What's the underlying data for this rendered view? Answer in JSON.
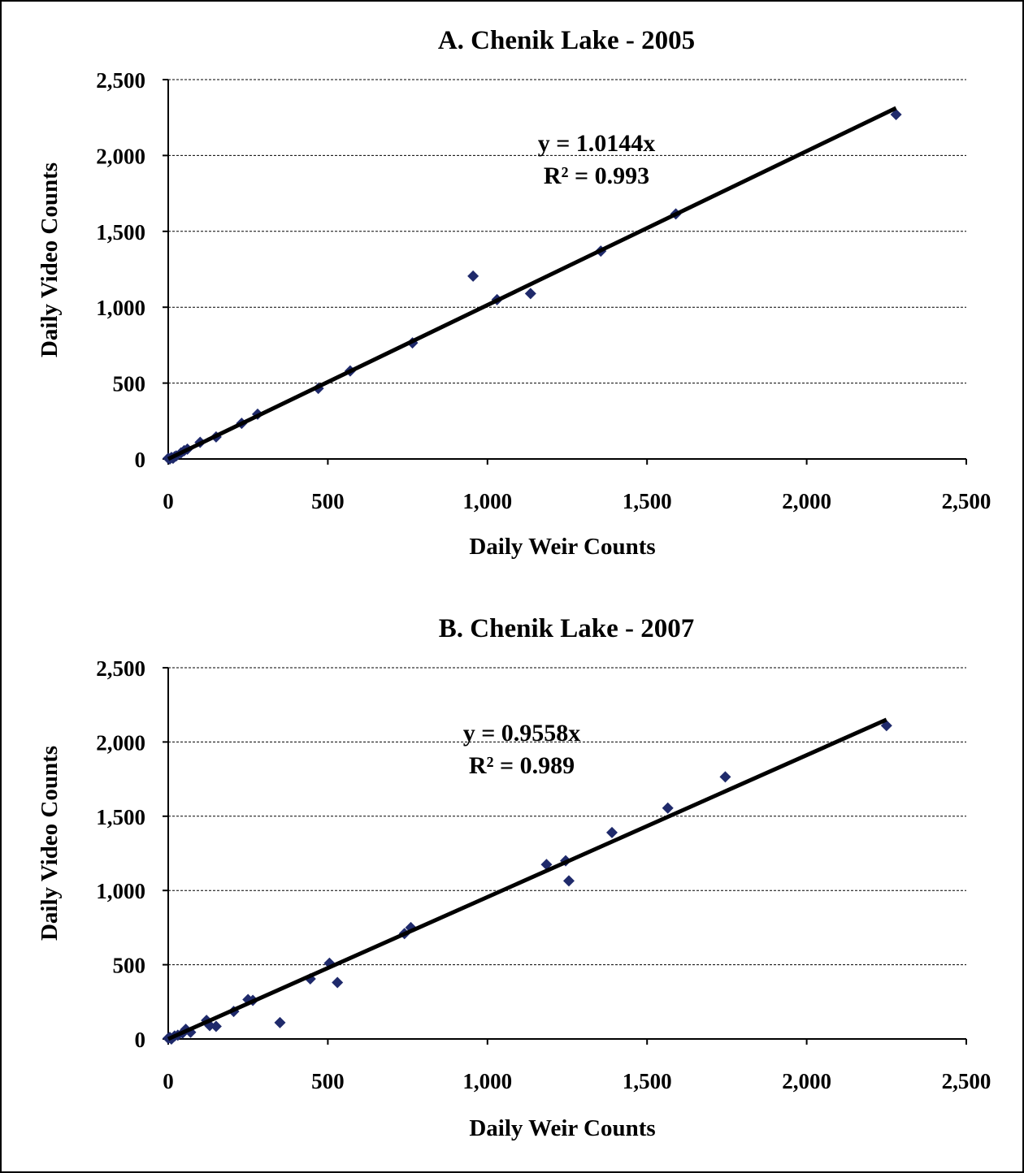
{
  "colors": {
    "marker": "#1f2a6b",
    "trendline": "#000000",
    "grid": "#000000"
  },
  "chart_data": [
    {
      "type": "scatter",
      "title": "A. Chenik Lake - 2005",
      "xlabel": "Daily Weir Counts",
      "ylabel": "Daily Video Counts",
      "xlim": [
        0,
        2500
      ],
      "ylim": [
        0,
        2500
      ],
      "xticks": [
        0,
        500,
        1000,
        1500,
        2000,
        2500
      ],
      "yticks": [
        0,
        500,
        1000,
        1500,
        2000,
        2500
      ],
      "xtick_labels": [
        "0",
        "500",
        "1,000",
        "1,500",
        "2,000",
        "2,500"
      ],
      "ytick_labels": [
        "0",
        "500",
        "1,000",
        "1,500",
        "2,000",
        "2,500"
      ],
      "grid": "horizontal dashed",
      "marker": "diamond",
      "trendline": {
        "slope": 1.0144,
        "intercept": 0,
        "x_range": [
          0,
          2280
        ],
        "equation": "y = 1.0144x",
        "r2": "R² = 0.993"
      },
      "points": [
        [
          0,
          5
        ],
        [
          5,
          0
        ],
        [
          10,
          10
        ],
        [
          15,
          5
        ],
        [
          20,
          15
        ],
        [
          25,
          20
        ],
        [
          40,
          40
        ],
        [
          50,
          55
        ],
        [
          60,
          65
        ],
        [
          100,
          110
        ],
        [
          150,
          145
        ],
        [
          230,
          235
        ],
        [
          280,
          295
        ],
        [
          470,
          465
        ],
        [
          570,
          580
        ],
        [
          765,
          765
        ],
        [
          955,
          1205
        ],
        [
          1030,
          1050
        ],
        [
          1135,
          1090
        ],
        [
          1355,
          1370
        ],
        [
          1590,
          1615
        ],
        [
          2280,
          2270
        ]
      ]
    },
    {
      "type": "scatter",
      "title": "B. Chenik Lake - 2007",
      "xlabel": "Daily Weir Counts",
      "ylabel": "Daily Video Counts",
      "xlim": [
        0,
        2500
      ],
      "ylim": [
        0,
        2500
      ],
      "xticks": [
        0,
        500,
        1000,
        1500,
        2000,
        2500
      ],
      "yticks": [
        0,
        500,
        1000,
        1500,
        2000,
        2500
      ],
      "xtick_labels": [
        "0",
        "500",
        "1,000",
        "1,500",
        "2,000",
        "2,500"
      ],
      "ytick_labels": [
        "0",
        "500",
        "1,000",
        "1,500",
        "2,000",
        "2,500"
      ],
      "grid": "horizontal dashed",
      "marker": "diamond",
      "trendline": {
        "slope": 0.9558,
        "intercept": 0,
        "x_range": [
          0,
          2250
        ],
        "equation": "y = 0.9558x",
        "r2": "R² = 0.989"
      },
      "points": [
        [
          0,
          5
        ],
        [
          5,
          10
        ],
        [
          10,
          0
        ],
        [
          20,
          20
        ],
        [
          30,
          25
        ],
        [
          45,
          40
        ],
        [
          55,
          65
        ],
        [
          70,
          45
        ],
        [
          120,
          125
        ],
        [
          130,
          90
        ],
        [
          150,
          85
        ],
        [
          205,
          185
        ],
        [
          250,
          265
        ],
        [
          265,
          260
        ],
        [
          350,
          110
        ],
        [
          445,
          405
        ],
        [
          505,
          510
        ],
        [
          530,
          380
        ],
        [
          740,
          710
        ],
        [
          760,
          750
        ],
        [
          1185,
          1175
        ],
        [
          1245,
          1200
        ],
        [
          1255,
          1065
        ],
        [
          1390,
          1390
        ],
        [
          1565,
          1555
        ],
        [
          1745,
          1765
        ],
        [
          2250,
          2110
        ]
      ]
    }
  ]
}
